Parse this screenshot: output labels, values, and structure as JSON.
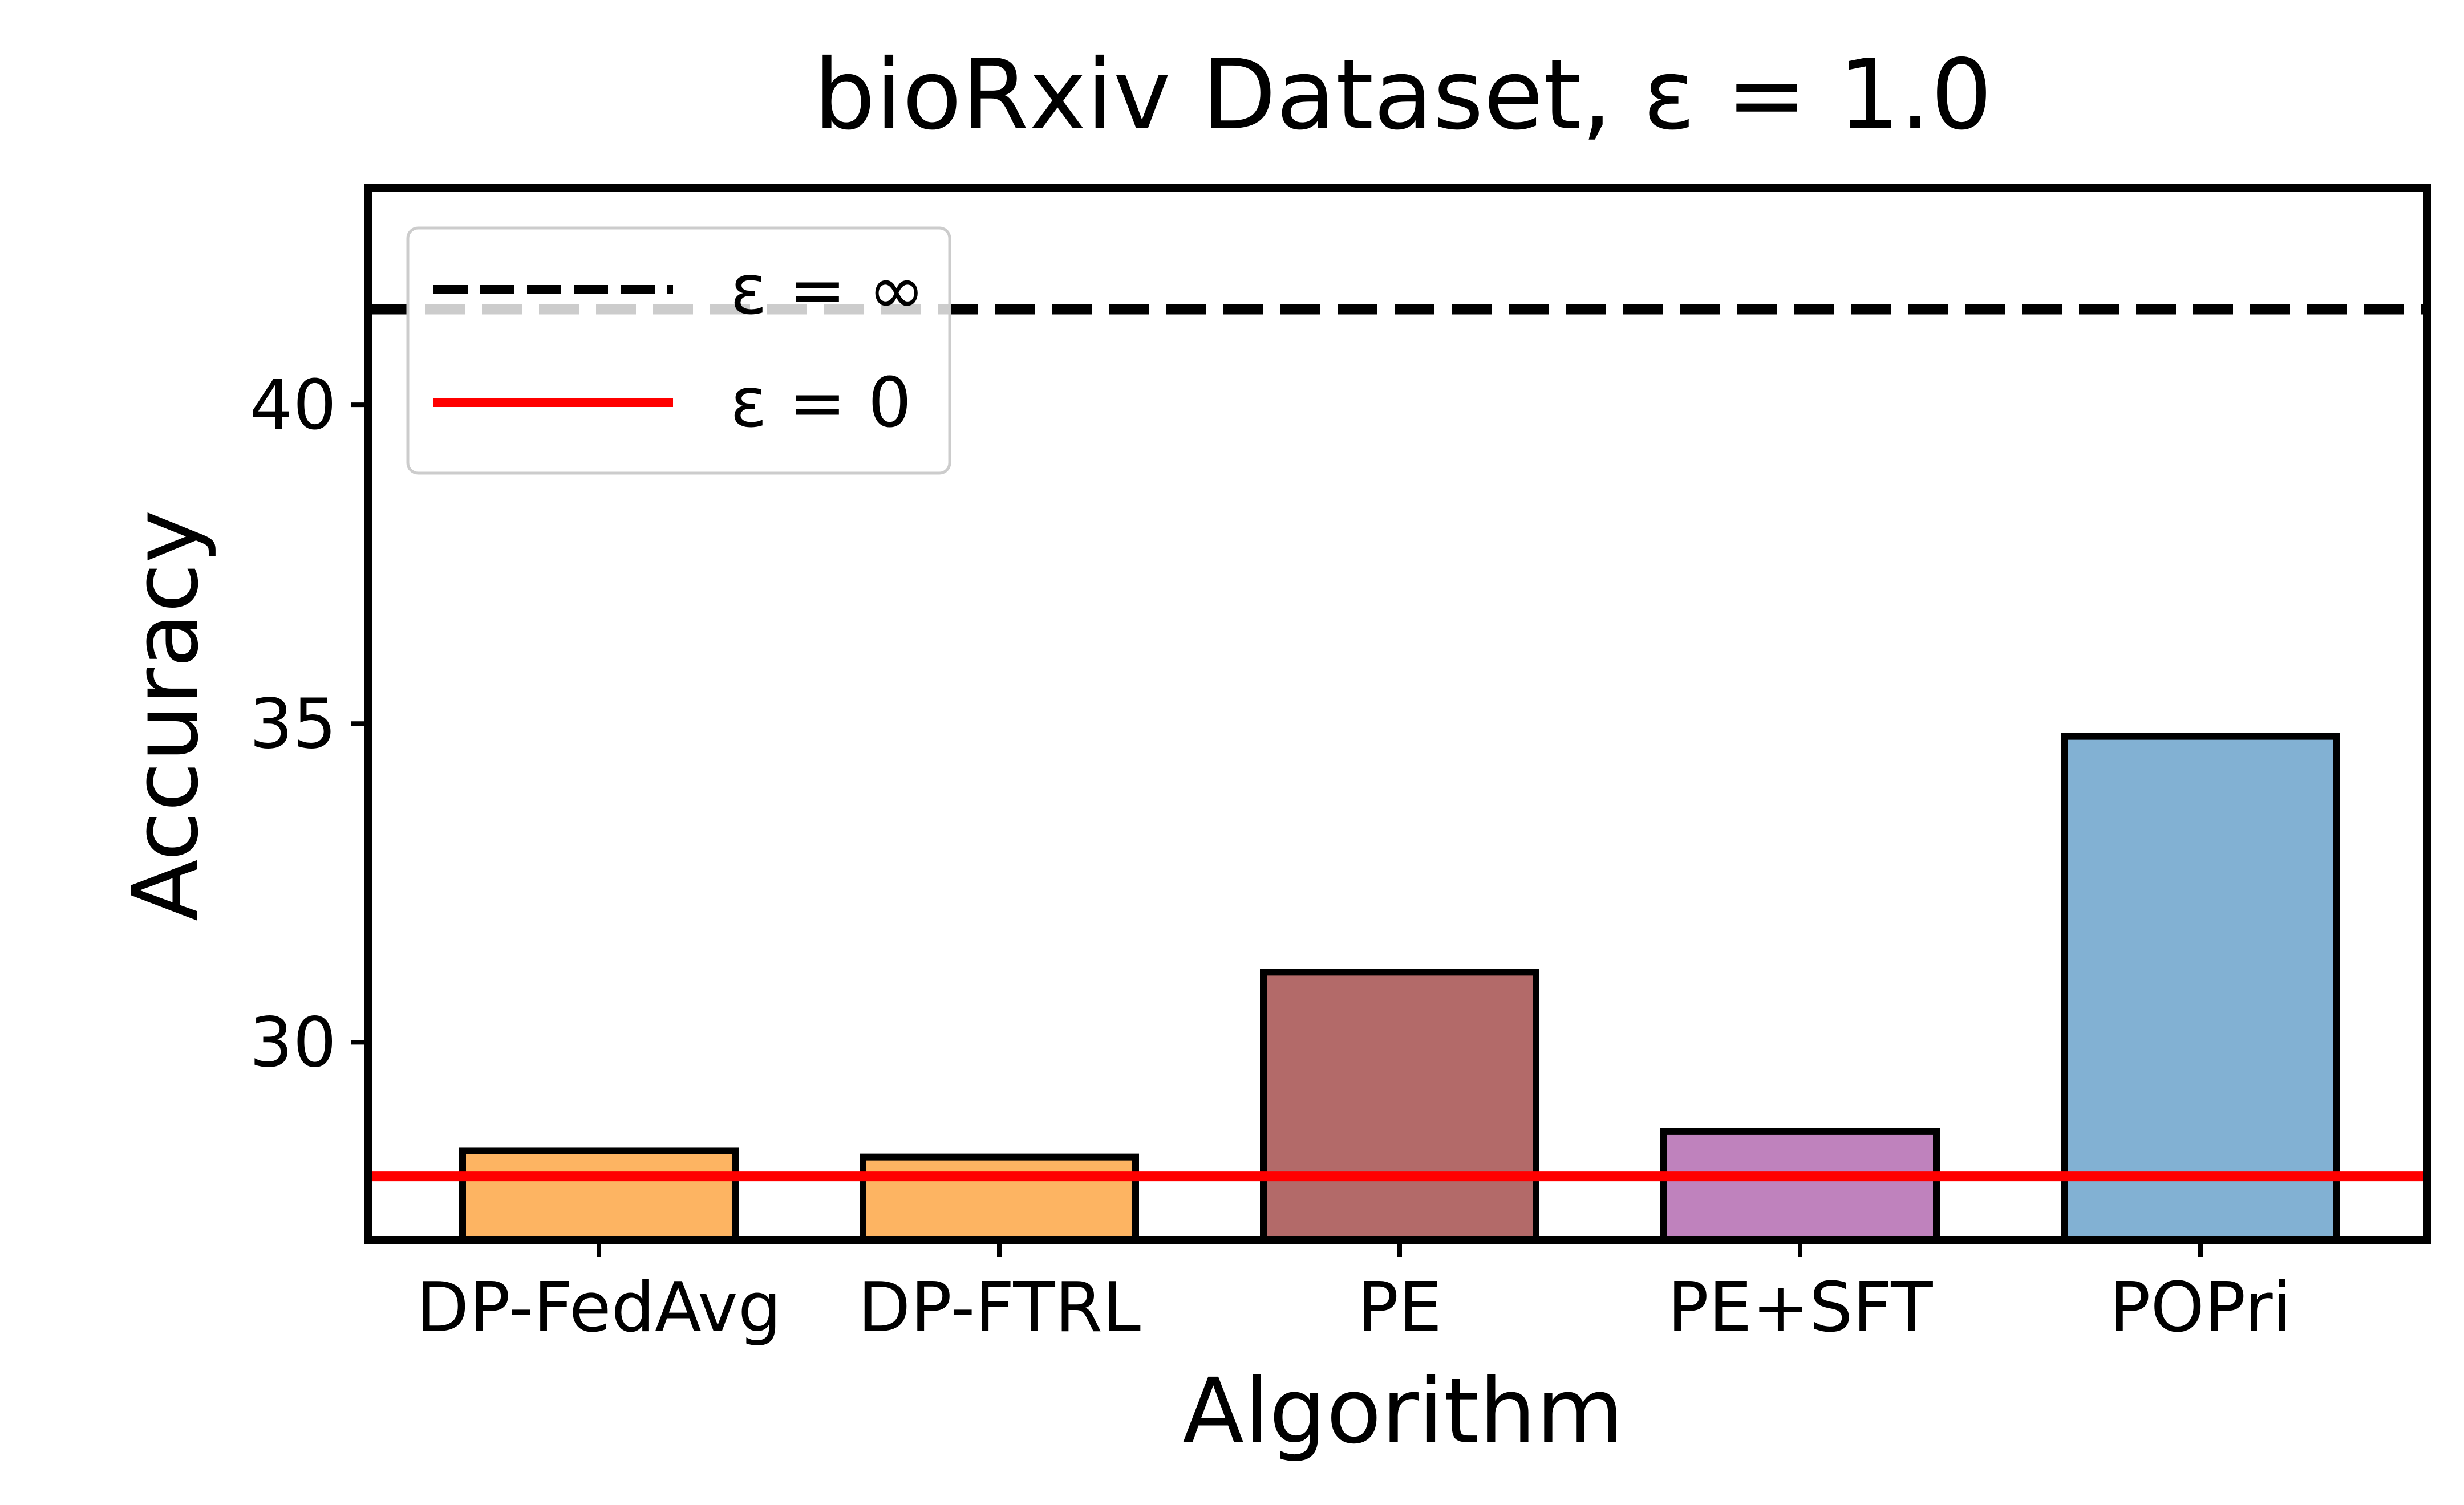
{
  "chart_data": {
    "type": "bar",
    "title": "bioRxiv Dataset, ε = 1.0",
    "xlabel": "Algorithm",
    "ylabel": "Accuracy",
    "categories": [
      "DP-FedAvg",
      "DP-FTRL",
      "PE",
      "PE+SFT",
      "POPri"
    ],
    "values": [
      28.3,
      28.2,
      31.1,
      28.6,
      34.8
    ],
    "colors": [
      "#fdb462",
      "#fdb462",
      "#b36a69",
      "#bf82bd",
      "#82b1d3"
    ],
    "ylim": [
      26.9,
      43.4
    ],
    "yticks": [
      30,
      35,
      40
    ],
    "ytick_labels": [
      "30",
      "35",
      "40"
    ],
    "grid": false,
    "reference_lines": [
      {
        "label": "ε = ∞",
        "value": 41.5,
        "style": "dashed",
        "color": "#000000"
      },
      {
        "label": "ε = 0",
        "value": 27.9,
        "style": "solid",
        "color": "#ff0000"
      }
    ],
    "legend_position": "top-left"
  }
}
